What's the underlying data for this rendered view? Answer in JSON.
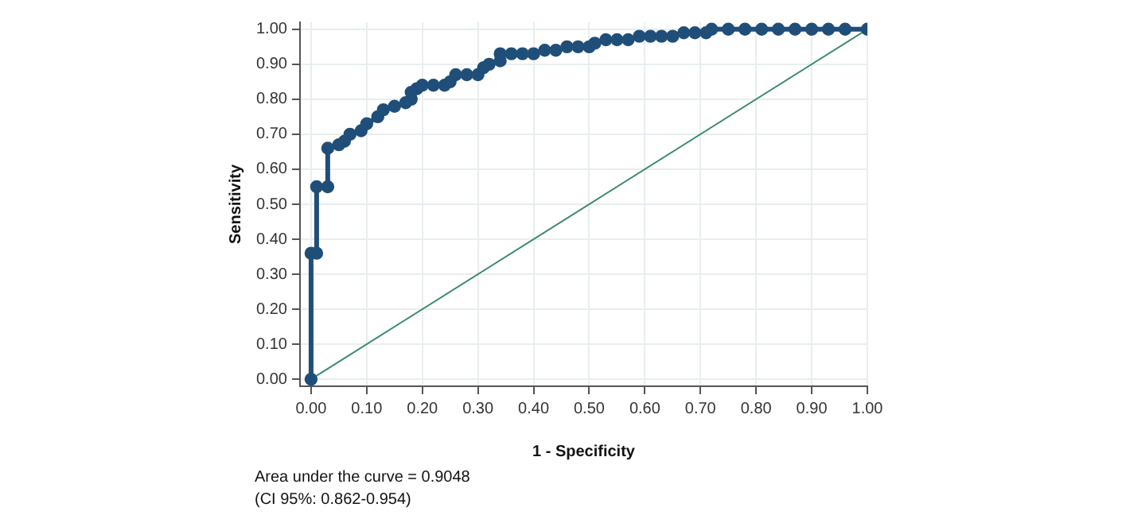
{
  "chart_data": {
    "type": "line",
    "xlabel": "1 - Specificity",
    "ylabel": "Sensitivity",
    "series": [
      {
        "color": "#1f4e79",
        "marker": "circle",
        "x": [
          0,
          0,
          0.01,
          0.01,
          0.03,
          0.03,
          0.05,
          0.06,
          0.07,
          0.09,
          0.1,
          0.12,
          0.13,
          0.15,
          0.17,
          0.18,
          0.18,
          0.19,
          0.2,
          0.22,
          0.24,
          0.25,
          0.26,
          0.28,
          0.3,
          0.31,
          0.32,
          0.34,
          0.34,
          0.36,
          0.38,
          0.4,
          0.42,
          0.44,
          0.46,
          0.48,
          0.5,
          0.51,
          0.53,
          0.55,
          0.57,
          0.59,
          0.61,
          0.63,
          0.65,
          0.67,
          0.69,
          0.71,
          0.72,
          0.75,
          0.78,
          0.81,
          0.84,
          0.87,
          0.9,
          0.93,
          0.96,
          1.0
        ],
        "values": [
          0,
          0.36,
          0.36,
          0.55,
          0.55,
          0.66,
          0.67,
          0.68,
          0.7,
          0.71,
          0.73,
          0.75,
          0.77,
          0.78,
          0.79,
          0.8,
          0.82,
          0.83,
          0.84,
          0.84,
          0.84,
          0.85,
          0.87,
          0.87,
          0.87,
          0.89,
          0.9,
          0.91,
          0.93,
          0.93,
          0.93,
          0.93,
          0.94,
          0.94,
          0.95,
          0.95,
          0.95,
          0.96,
          0.97,
          0.97,
          0.97,
          0.98,
          0.98,
          0.98,
          0.98,
          0.99,
          0.99,
          0.99,
          1.0,
          1.0,
          1.0,
          1.0,
          1.0,
          1.0,
          1.0,
          1.0,
          1.0,
          1.0
        ]
      },
      {
        "color": "#3a8a6a",
        "marker": "none",
        "x": [
          0,
          1
        ],
        "values": [
          0,
          1
        ]
      }
    ],
    "xlim": [
      -0.02,
      1.0
    ],
    "ylim": [
      -0.02,
      1.02
    ],
    "xticks": [
      {
        "value": 0,
        "label": "0.00"
      },
      {
        "value": 0.1,
        "label": "0.10"
      },
      {
        "value": 0.2,
        "label": "0.20"
      },
      {
        "value": 0.3,
        "label": "0.30"
      },
      {
        "value": 0.4,
        "label": "0.40"
      },
      {
        "value": 0.5,
        "label": "0.50"
      },
      {
        "value": 0.6,
        "label": "0.60"
      },
      {
        "value": 0.7,
        "label": "0.70"
      },
      {
        "value": 0.8,
        "label": "0.80"
      },
      {
        "value": 0.9,
        "label": "0.90"
      },
      {
        "value": 1,
        "label": "1.00"
      }
    ],
    "yticks": [
      {
        "value": 0,
        "label": "0.00"
      },
      {
        "value": 0.1,
        "label": "0.10"
      },
      {
        "value": 0.2,
        "label": "0.20"
      },
      {
        "value": 0.3,
        "label": "0.30"
      },
      {
        "value": 0.4,
        "label": "0.40"
      },
      {
        "value": 0.5,
        "label": "0.50"
      },
      {
        "value": 0.6,
        "label": "0.60"
      },
      {
        "value": 0.7,
        "label": "0.70"
      },
      {
        "value": 0.8,
        "label": "0.80"
      },
      {
        "value": 0.9,
        "label": "0.90"
      },
      {
        "value": 1,
        "label": "1.00"
      }
    ],
    "grid": true,
    "legend": false,
    "line_style": "solid",
    "annotations": [
      "Area under the curve = 0.9048",
      "(CI 95%: 0.862-0.954)"
    ]
  }
}
